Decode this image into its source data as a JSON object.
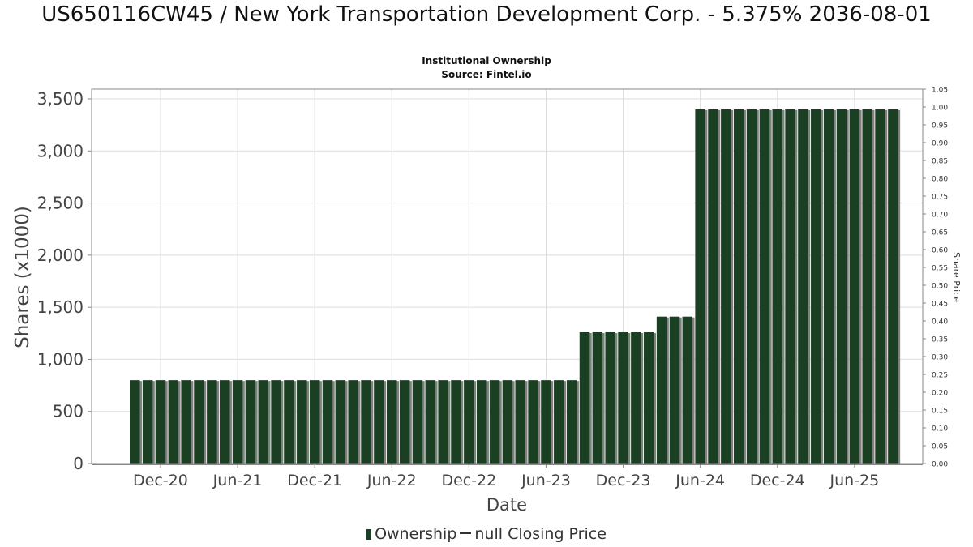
{
  "chart_data": {
    "type": "bar",
    "title": "US650116CW45 / New York Transportation Development Corp. - 5.375% 2036-08-01",
    "subtitle_1": "Institutional Ownership",
    "subtitle_2": "Source: Fintel.io",
    "xlabel": "Date",
    "ylabel": "Shares (x1000)",
    "y2label": "Share Price",
    "ylim": [
      0,
      3500
    ],
    "y_ticks": [
      "0",
      "500",
      "1,000",
      "1,500",
      "2,000",
      "2,500",
      "3,000",
      "3,500"
    ],
    "y2lim": [
      0,
      1.05
    ],
    "y2_ticks": [
      "0.00",
      "0.05",
      "0.10",
      "0.15",
      "0.20",
      "0.25",
      "0.30",
      "0.35",
      "0.40",
      "0.45",
      "0.50",
      "0.55",
      "0.60",
      "0.65",
      "0.70",
      "0.75",
      "0.80",
      "0.85",
      "0.90",
      "0.95",
      "1.00",
      "1.05"
    ],
    "x_ticks": [
      "Dec-20",
      "Jun-21",
      "Dec-21",
      "Jun-22",
      "Dec-22",
      "Jun-23",
      "Dec-23",
      "Jun-24",
      "Dec-24",
      "Jun-25"
    ],
    "grid": true,
    "legend_position": "bottom",
    "series": [
      {
        "name": "Ownership",
        "type": "bar",
        "color": "#1b3f23",
        "start_date": "2020-10",
        "frequency": "monthly",
        "values": [
          800,
          800,
          800,
          800,
          800,
          800,
          800,
          800,
          800,
          800,
          800,
          800,
          800,
          800,
          800,
          800,
          800,
          800,
          800,
          800,
          800,
          800,
          800,
          800,
          800,
          800,
          800,
          800,
          800,
          800,
          800,
          800,
          800,
          800,
          800,
          1260,
          1260,
          1260,
          1260,
          1260,
          1260,
          1410,
          1410,
          1410,
          3400,
          3400,
          3400,
          3400,
          3400,
          3400,
          3400,
          3400,
          3400,
          3400,
          3400,
          3400,
          3400,
          3400,
          3400,
          3400
        ]
      },
      {
        "name": "null Closing Price",
        "type": "line",
        "color": "#333333",
        "values": []
      }
    ]
  }
}
